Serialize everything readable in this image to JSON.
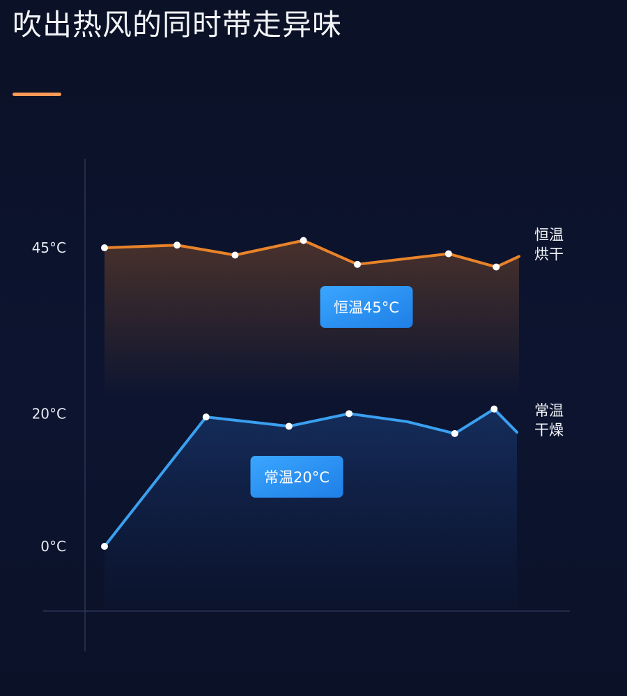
{
  "title": "吹出热风的同时带走异味",
  "colors": {
    "background": "#0b1226",
    "accent": "#ff9a57",
    "orange_series": "#e8832a",
    "blue_series": "#3aa0f0",
    "tag": "#2e90f0"
  },
  "chart_data": {
    "type": "line",
    "ytick_labels": [
      "45°C",
      "20°C",
      "0°C"
    ],
    "ytick_values": [
      45,
      20,
      0
    ],
    "ylim": [
      -9,
      70
    ],
    "xlim": [
      0,
      20
    ],
    "grid": false,
    "series": [
      {
        "name": "恒温烘干",
        "end_label": [
          "恒温",
          "烘干"
        ],
        "tag": "恒温45°C",
        "color": "#e8832a",
        "points": [
          {
            "x": 0,
            "y": 45.0
          },
          {
            "x": 3.5,
            "y": 45.4
          },
          {
            "x": 6.3,
            "y": 43.9
          },
          {
            "x": 9.6,
            "y": 46.1
          },
          {
            "x": 12.2,
            "y": 42.5
          },
          {
            "x": 16.6,
            "y": 44.1
          },
          {
            "x": 18.9,
            "y": 42.1
          },
          {
            "x": 20,
            "y": 43.7
          }
        ],
        "marked": [
          0,
          1,
          2,
          3,
          4,
          5,
          6
        ]
      },
      {
        "name": "常温干燥",
        "end_label": [
          "常温",
          "干燥"
        ],
        "tag": "常温20°C",
        "color": "#3aa0f0",
        "points": [
          {
            "x": 0,
            "y": 0.0
          },
          {
            "x": 4.9,
            "y": 19.5
          },
          {
            "x": 8.9,
            "y": 18.1
          },
          {
            "x": 11.8,
            "y": 20.0
          },
          {
            "x": 14.6,
            "y": 18.8
          },
          {
            "x": 16.9,
            "y": 17.0
          },
          {
            "x": 18.8,
            "y": 20.7
          },
          {
            "x": 19.9,
            "y": 17.2
          }
        ],
        "marked": [
          0,
          1,
          2,
          3,
          5,
          6
        ]
      }
    ]
  }
}
